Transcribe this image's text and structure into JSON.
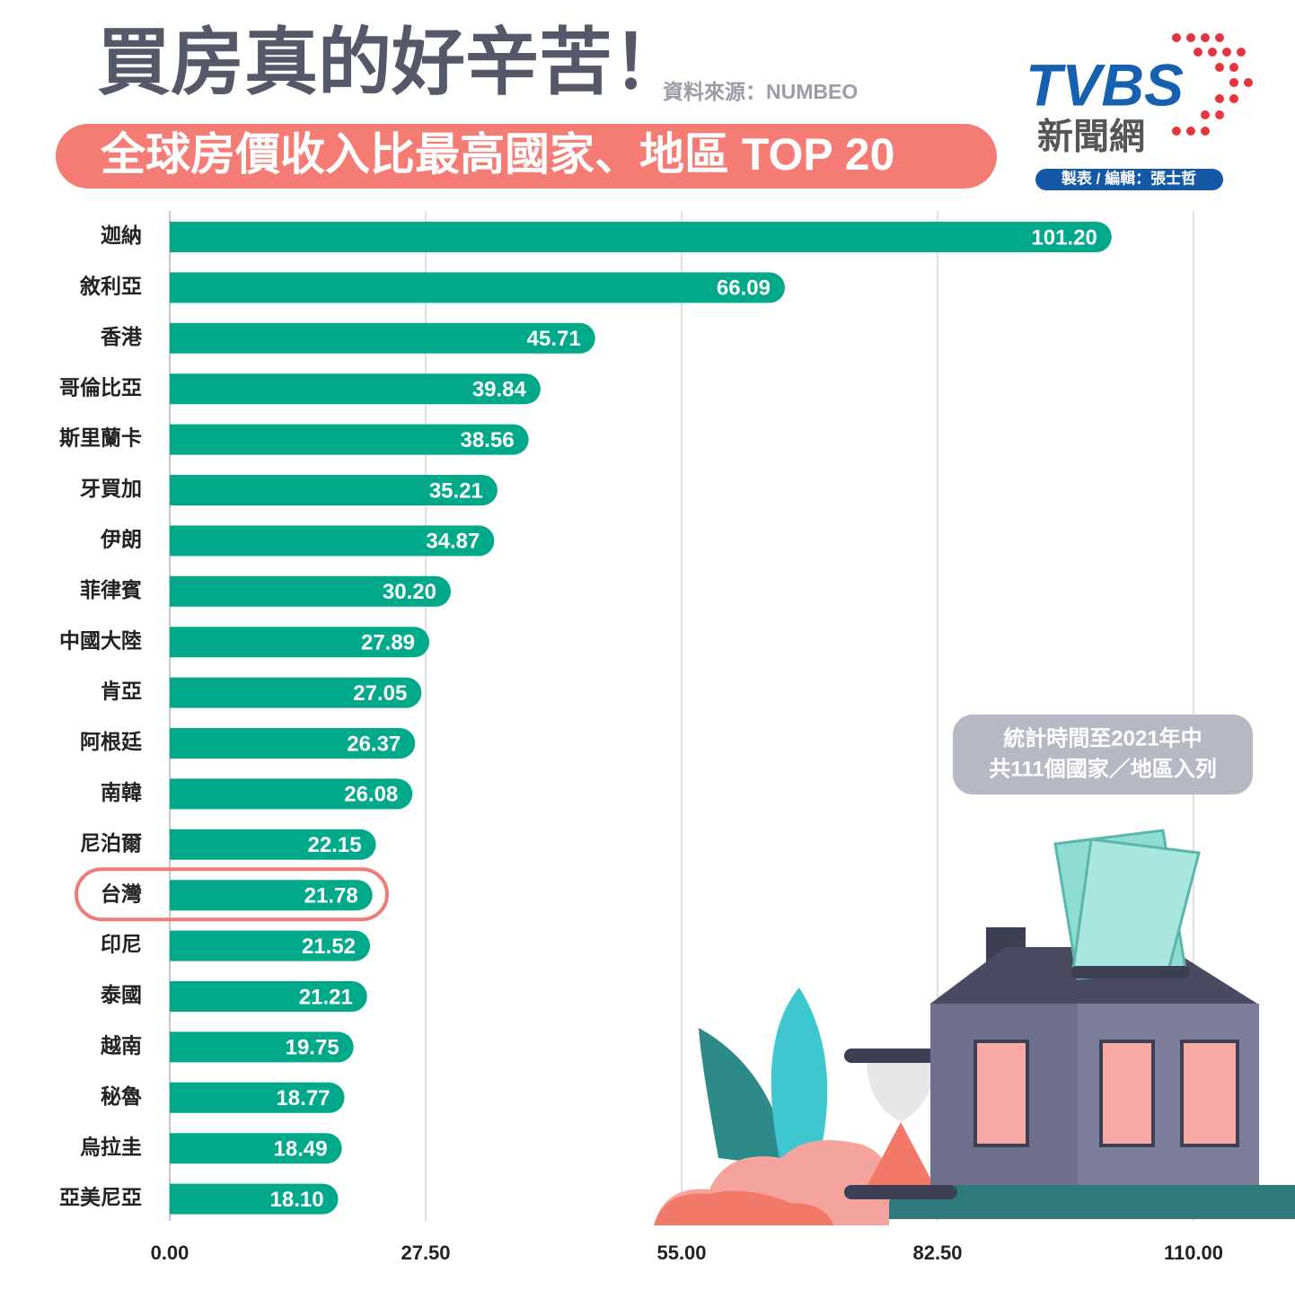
{
  "header": {
    "title": "買房真的好辛苦！",
    "source": "資料來源：NUMBEO",
    "subtitle": "全球房價收入比最高國家、地區 TOP 20",
    "logo": "TVBS",
    "logo_sub": "新聞網",
    "credit": "製表 / 編輯：張士哲"
  },
  "note": [
    "統計時間至2021年中",
    "共111個國家／地區入列"
  ],
  "chart_data": {
    "type": "hbar",
    "color": "#00a98a",
    "grid": true,
    "highlight": "台灣",
    "categories": [
      "迦納",
      "敘利亞",
      "香港",
      "哥倫比亞",
      "斯里蘭卡",
      "牙買加",
      "伊朗",
      "菲律賓",
      "中國大陸",
      "肯亞",
      "阿根廷",
      "南韓",
      "尼泊爾",
      "台灣",
      "印尼",
      "泰國",
      "越南",
      "秘魯",
      "烏拉圭",
      "亞美尼亞"
    ],
    "values": [
      101.2,
      66.09,
      45.71,
      39.84,
      38.56,
      35.21,
      34.87,
      30.2,
      27.89,
      27.05,
      26.37,
      26.08,
      22.15,
      21.78,
      21.52,
      21.21,
      19.75,
      18.77,
      18.49,
      18.1
    ],
    "value_labels": [
      "101.20",
      "66.09",
      "45.71",
      "39.84",
      "38.56",
      "35.21",
      "34.87",
      "30.20",
      "27.89",
      "27.05",
      "26.37",
      "26.08",
      "22.15",
      "21.78",
      "21.52",
      "21.21",
      "19.75",
      "18.77",
      "18.49",
      "18.10"
    ],
    "xlim": [
      0,
      110
    ],
    "xticks": [
      {
        "value": 0,
        "label": "0.00"
      },
      {
        "value": 27.5,
        "label": "27.50"
      },
      {
        "value": 55,
        "label": "55.00"
      },
      {
        "value": 82.5,
        "label": "82.50"
      },
      {
        "value": 110,
        "label": "110.00"
      }
    ]
  }
}
